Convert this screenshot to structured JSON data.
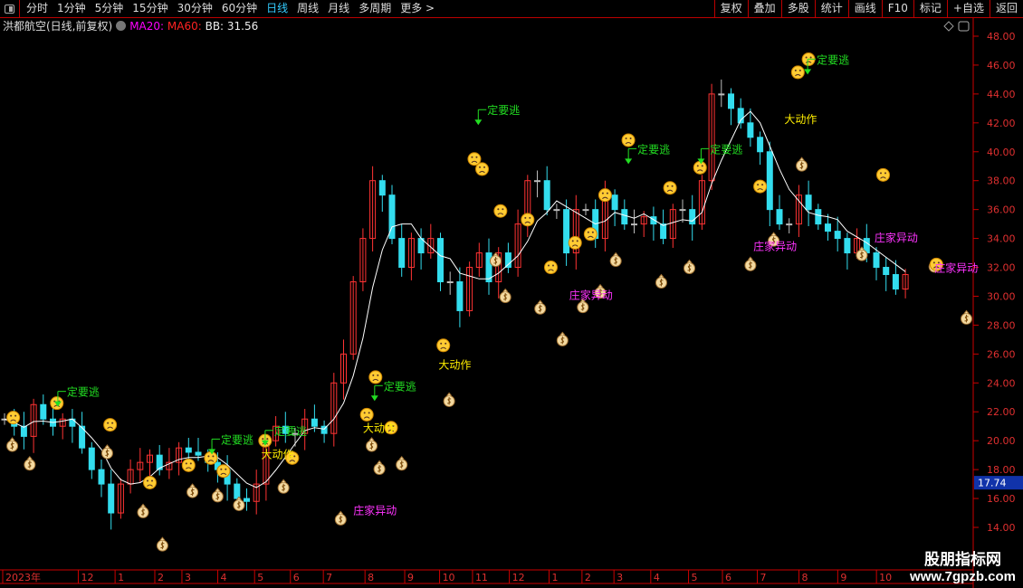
{
  "toolbar": {
    "periods": [
      "分时",
      "1分钟",
      "5分钟",
      "15分钟",
      "30分钟",
      "60分钟",
      "日线",
      "周线",
      "月线",
      "多周期",
      "更多 >"
    ],
    "active": "日线",
    "right_buttons": [
      "复权",
      "叠加",
      "多股",
      "统计",
      "画线",
      "F10",
      "标记",
      "+自选",
      "返回"
    ]
  },
  "info": {
    "title": "洪都航空(日线,前复权)",
    "ma20": "MA20:",
    "ma60": "MA60:",
    "bb": "BB: 31.56"
  },
  "colors": {
    "up": "#ff3333",
    "down": "#33ddee",
    "flat": "#bbbbbb",
    "ma": "#ffffff",
    "axis": "#cc0000",
    "escape": "#22dd22",
    "action": "#ffee00",
    "anomaly": "#ff33ff",
    "last_price_bg": "#1133aa"
  },
  "watermark": {
    "line1": "股朋指标网",
    "line2": "www.7gpzb.com"
  },
  "chart_data": {
    "type": "candlestick",
    "ylim": [
      14,
      48
    ],
    "yticks": [
      "14.00",
      "16.00",
      "18.00",
      "20.00",
      "22.00",
      "24.00",
      "26.00",
      "28.00",
      "30.00",
      "32.00",
      "34.00",
      "36.00",
      "38.00",
      "40.00",
      "42.00",
      "44.00",
      "46.00",
      "48.00"
    ],
    "last_price": "17.74",
    "closes": [
      21.5,
      21,
      20.3,
      22.5,
      21.5,
      21,
      21.5,
      21,
      19.5,
      18,
      17,
      15,
      17,
      18,
      18.5,
      19,
      18,
      18.5,
      19.5,
      19.2,
      19,
      18.5,
      18,
      17,
      16,
      15.8,
      17,
      20,
      21,
      20.5,
      20.5,
      21.5,
      21,
      20.5,
      24,
      26,
      31,
      34,
      38,
      37,
      34,
      32,
      34,
      33,
      34,
      31,
      31,
      29,
      32,
      33,
      31,
      33,
      32,
      35,
      38,
      38,
      36,
      36,
      33,
      36,
      36,
      34,
      37,
      36,
      35,
      35,
      35.5,
      35,
      34,
      36,
      36,
      35,
      38,
      44,
      44,
      43,
      42,
      41,
      40,
      36,
      35,
      35,
      37,
      36,
      35,
      34.5,
      34,
      33,
      34,
      33,
      32,
      31.5,
      30.5,
      31.5
    ],
    "xlabels": [
      {
        "i": 0,
        "t": "2023年"
      },
      {
        "i": 7.8,
        "t": "12"
      },
      {
        "i": 11.6,
        "t": "1"
      },
      {
        "i": 15.7,
        "t": "2"
      },
      {
        "i": 18.5,
        "t": "3"
      },
      {
        "i": 22.2,
        "t": "4"
      },
      {
        "i": 26,
        "t": "5"
      },
      {
        "i": 29.7,
        "t": "6"
      },
      {
        "i": 33.1,
        "t": "7"
      },
      {
        "i": 37.4,
        "t": "8"
      },
      {
        "i": 41.5,
        "t": "9"
      },
      {
        "i": 45.1,
        "t": "10"
      },
      {
        "i": 48.5,
        "t": "11"
      },
      {
        "i": 52.3,
        "t": "12"
      },
      {
        "i": 56.4,
        "t": "1"
      },
      {
        "i": 59.8,
        "t": "2"
      },
      {
        "i": 63.1,
        "t": "3"
      },
      {
        "i": 66.9,
        "t": "4"
      },
      {
        "i": 70.8,
        "t": "5"
      },
      {
        "i": 74.3,
        "t": "6"
      },
      {
        "i": 77.9,
        "t": "7"
      },
      {
        "i": 82.2,
        "t": "8"
      },
      {
        "i": 86.2,
        "t": "9"
      },
      {
        "i": 90.2,
        "t": "10"
      }
    ],
    "signals": [
      {
        "type": "escape",
        "text": "定要逃",
        "i": 5.6,
        "p": 23.1
      },
      {
        "type": "escape",
        "text": "定要逃",
        "i": 21.5,
        "p": 19.8
      },
      {
        "type": "escape",
        "text": "定要逃",
        "i": 27,
        "p": 20.4
      },
      {
        "type": "escape",
        "text": "定要逃",
        "i": 38.3,
        "p": 23.5
      },
      {
        "type": "escape",
        "text": "定要逃",
        "i": 49,
        "p": 42.6
      },
      {
        "type": "escape",
        "text": "定要逃",
        "i": 64.5,
        "p": 39.9
      },
      {
        "type": "escape",
        "text": "定要逃",
        "i": 72,
        "p": 39.9
      },
      {
        "type": "escape",
        "text": "定要逃",
        "i": 83,
        "p": 46.1
      },
      {
        "type": "action",
        "text": "大动作",
        "i": 44.8,
        "p": 25
      },
      {
        "type": "action",
        "text": "大动作",
        "i": 26.5,
        "p": 18.8
      },
      {
        "type": "action",
        "text": "大动作",
        "i": 37,
        "p": 20.6
      },
      {
        "type": "action",
        "text": "大动作",
        "i": 80.5,
        "p": 42
      },
      {
        "type": "anomaly",
        "text": "庄家异动",
        "i": 36,
        "p": 14.9
      },
      {
        "type": "anomaly",
        "text": "庄家异动",
        "i": 58.3,
        "p": 29.8
      },
      {
        "type": "anomaly",
        "text": "庄家异动",
        "i": 77.3,
        "p": 33.2
      },
      {
        "type": "anomaly",
        "text": "庄家异动",
        "i": 89.8,
        "p": 33.8
      },
      {
        "type": "anomaly",
        "text": "庄家异动",
        "i": 96,
        "p": 31.7
      }
    ],
    "faces": [
      [
        0.9,
        21.6
      ],
      [
        5.4,
        22.6
      ],
      [
        10.9,
        21.1
      ],
      [
        15,
        17.1
      ],
      [
        19,
        18.3
      ],
      [
        21.3,
        18.8
      ],
      [
        22.6,
        17.9
      ],
      [
        26.9,
        20
      ],
      [
        29.7,
        18.8
      ],
      [
        37.4,
        21.8
      ],
      [
        38.3,
        24.4
      ],
      [
        39.9,
        20.9
      ],
      [
        45.3,
        26.6
      ],
      [
        48.5,
        39.5
      ],
      [
        49.3,
        38.8
      ],
      [
        51.2,
        35.9
      ],
      [
        54,
        35.3
      ],
      [
        56.4,
        32
      ],
      [
        58.9,
        33.7
      ],
      [
        60.5,
        34.3
      ],
      [
        62,
        37
      ],
      [
        64.4,
        40.8
      ],
      [
        68.7,
        37.5
      ],
      [
        71.8,
        38.9
      ],
      [
        78,
        37.6
      ],
      [
        81.9,
        45.5
      ],
      [
        83,
        46.4
      ],
      [
        90.7,
        38.4
      ],
      [
        96.2,
        32.2
      ]
    ],
    "bags": [
      [
        0.8,
        19.7
      ],
      [
        2.6,
        18.4
      ],
      [
        10.6,
        19.2
      ],
      [
        14.3,
        15.1
      ],
      [
        16.3,
        12.8
      ],
      [
        19.4,
        16.5
      ],
      [
        22,
        16.2
      ],
      [
        24.2,
        15.6
      ],
      [
        28.8,
        16.8
      ],
      [
        34.7,
        14.6
      ],
      [
        37.9,
        19.7
      ],
      [
        38.7,
        18.1
      ],
      [
        41,
        18.4
      ],
      [
        45.9,
        22.8
      ],
      [
        50.7,
        32.5
      ],
      [
        51.7,
        30
      ],
      [
        55.3,
        29.2
      ],
      [
        57.6,
        27
      ],
      [
        59.7,
        29.3
      ],
      [
        61.5,
        30.3
      ],
      [
        63.1,
        32.5
      ],
      [
        67.8,
        31
      ],
      [
        70.7,
        32
      ],
      [
        77,
        32.2
      ],
      [
        79.4,
        33.9
      ],
      [
        82.3,
        39.1
      ],
      [
        88.5,
        32.9
      ],
      [
        96,
        32.1
      ],
      [
        99.3,
        28.5
      ]
    ]
  }
}
